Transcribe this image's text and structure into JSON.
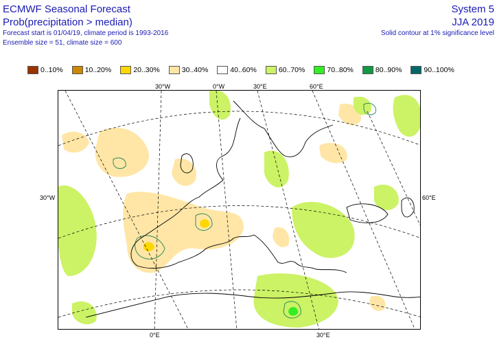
{
  "header": {
    "title": "ECMWF Seasonal Forecast",
    "subtitle": "Prob(precipitation > median)",
    "forecast_info": "Forecast start is 01/04/19, climate period is 1993-2016",
    "ensemble_info": "Ensemble size = 51, climate size = 600",
    "system": "System 5",
    "season": "JJA 2019",
    "significance_note": "Solid contour at 1% significance level"
  },
  "legend": [
    {
      "label": "0..10%",
      "color": "#993300"
    },
    {
      "label": "10..20%",
      "color": "#cc8800"
    },
    {
      "label": "20..30%",
      "color": "#ffd700"
    },
    {
      "label": "30..40%",
      "color": "#ffe6a6"
    },
    {
      "label": "40..60%",
      "color": "#ffffff"
    },
    {
      "label": "60..70%",
      "color": "#ccf266"
    },
    {
      "label": "70..80%",
      "color": "#33ee22"
    },
    {
      "label": "80..90%",
      "color": "#119944"
    },
    {
      "label": "90..100%",
      "color": "#006666"
    }
  ],
  "axes": {
    "top": [
      "30°W",
      "0°W",
      "30°E",
      "60°E"
    ],
    "bottom": [
      "0°E",
      "30°E"
    ],
    "left": "30°W",
    "right": "60°E"
  },
  "colors": {
    "text": "#1a1ab3",
    "dry_light": "#ffe6a6",
    "dry_mid": "#ffd700",
    "wet_light": "#ccf266",
    "wet_mid": "#33ee22",
    "contour": "#2e8b57"
  }
}
